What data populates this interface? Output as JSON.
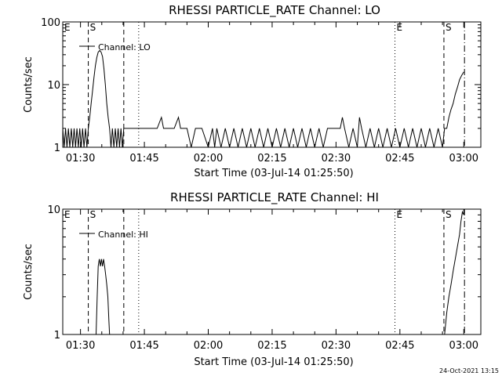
{
  "chart_data": [
    {
      "type": "line",
      "title": "RHESSI PARTICLE_RATE Channel: LO",
      "xlabel": "Start Time (03-Jul-14 01:25:50)",
      "ylabel": "Counts/sec",
      "yscale": "log",
      "ylim": [
        1,
        100
      ],
      "xlim": [
        "01:25:50",
        "03:04:00"
      ],
      "grid": false,
      "legend": {
        "placement": "top-left",
        "entries": [
          "Channel: LO"
        ]
      },
      "x_ticks": [
        "01:30",
        "01:45",
        "02:00",
        "02:15",
        "02:30",
        "02:45",
        "03:00"
      ],
      "y_ticks": [
        "1",
        "10",
        "100"
      ],
      "event_markers": [
        {
          "label": "E",
          "time": "01:25:50",
          "style": "edge"
        },
        {
          "label": "S",
          "time": "01:31:50",
          "style": "dashed"
        },
        {
          "label": "",
          "time": "01:40:10",
          "style": "dashed"
        },
        {
          "label": "",
          "time": "01:43:40",
          "style": "dotted"
        },
        {
          "label": "E",
          "time": "02:43:50",
          "style": "dotted"
        },
        {
          "label": "S",
          "time": "02:55:20",
          "style": "dashed"
        },
        {
          "label": "",
          "time": "03:00:10",
          "style": "dashdot"
        }
      ],
      "series": [
        {
          "name": "Channel: LO",
          "x": [
            "01:25:50",
            "01:26:10",
            "01:26:30",
            "01:26:50",
            "01:27:10",
            "01:27:30",
            "01:27:50",
            "01:28:10",
            "01:28:30",
            "01:28:50",
            "01:29:10",
            "01:29:30",
            "01:29:50",
            "01:30:10",
            "01:30:30",
            "01:30:50",
            "01:31:10",
            "01:31:30",
            "01:31:50",
            "01:32:10",
            "01:32:30",
            "01:32:50",
            "01:33:10",
            "01:33:30",
            "01:33:50",
            "01:34:10",
            "01:34:30",
            "01:34:50",
            "01:35:10",
            "01:35:30",
            "01:35:50",
            "01:36:10",
            "01:36:30",
            "01:36:50",
            "01:37:10",
            "01:37:30",
            "01:37:50",
            "01:38:10",
            "01:38:30",
            "01:38:50",
            "01:39:10",
            "01:39:30",
            "01:39:50",
            "01:40:10",
            "01:40:30",
            "01:40:50",
            "01:41:10",
            "01:41:30",
            "01:41:50",
            "01:42:10",
            "01:42:30",
            "01:42:50",
            "01:43:10",
            "01:43:30",
            "01:44:00",
            "01:46:00",
            "01:48:00",
            "01:49:00",
            "01:49:30",
            "01:50:00",
            "01:52:00",
            "01:53:00",
            "01:53:30",
            "01:54:00",
            "01:55:00",
            "01:56:00",
            "01:57:00",
            "01:58:30",
            "02:00:00",
            "02:01:00",
            "02:01:30",
            "02:02:00",
            "02:03:00",
            "02:04:00",
            "02:05:00",
            "02:06:00",
            "02:07:00",
            "02:08:00",
            "02:09:00",
            "02:10:00",
            "02:11:00",
            "02:12:00",
            "02:13:00",
            "02:14:00",
            "02:15:00",
            "02:16:00",
            "02:17:00",
            "02:18:00",
            "02:19:00",
            "02:20:00",
            "02:21:00",
            "02:22:00",
            "02:23:00",
            "02:24:00",
            "02:25:00",
            "02:26:00",
            "02:27:00",
            "02:28:00",
            "02:29:00",
            "02:30:00",
            "02:31:00",
            "02:31:30",
            "02:32:00",
            "02:33:00",
            "02:34:00",
            "02:35:00",
            "02:35:30",
            "02:36:00",
            "02:37:00",
            "02:38:00",
            "02:39:00",
            "02:40:00",
            "02:41:00",
            "02:42:00",
            "02:43:00",
            "02:44:00",
            "02:45:00",
            "02:46:00",
            "02:47:00",
            "02:48:00",
            "02:49:00",
            "02:50:00",
            "02:51:00",
            "02:52:00",
            "02:53:00",
            "02:54:00",
            "02:55:00",
            "02:55:30",
            "02:56:00",
            "02:56:30",
            "02:57:00",
            "02:57:30",
            "02:58:00",
            "02:58:30",
            "02:59:00",
            "02:59:30",
            "03:00:00"
          ],
          "y": [
            2,
            1,
            2,
            1,
            2,
            1,
            2,
            1,
            2,
            1,
            2,
            1,
            2,
            1,
            2,
            1,
            2,
            1,
            2,
            3,
            5,
            8,
            13,
            20,
            27,
            33,
            35,
            33,
            28,
            18,
            10,
            5,
            3,
            2,
            1,
            2,
            1,
            2,
            1,
            2,
            1,
            2,
            1,
            2,
            2,
            2,
            2,
            2,
            2,
            2,
            2,
            2,
            2,
            2,
            2,
            2,
            2,
            3,
            2,
            2,
            2,
            3,
            2,
            2,
            2,
            1,
            2,
            2,
            1,
            2,
            1,
            2,
            1,
            2,
            1,
            2,
            1,
            2,
            1,
            2,
            1,
            2,
            1,
            2,
            1,
            2,
            1,
            2,
            1,
            2,
            1,
            2,
            1,
            2,
            1,
            2,
            1,
            2,
            2,
            2,
            2,
            3,
            2,
            1,
            2,
            1,
            3,
            2,
            1,
            2,
            1,
            2,
            1,
            2,
            1,
            2,
            1,
            2,
            1,
            2,
            1,
            2,
            1,
            2,
            1,
            2,
            1,
            2,
            2,
            3,
            4,
            5,
            7,
            9,
            12,
            14,
            16
          ]
        }
      ]
    },
    {
      "type": "line",
      "title": "RHESSI PARTICLE_RATE Channel: HI",
      "xlabel": "Start Time (03-Jul-14 01:25:50)",
      "ylabel": "Counts/sec",
      "yscale": "log",
      "ylim": [
        1,
        10
      ],
      "xlim": [
        "01:25:50",
        "03:04:00"
      ],
      "grid": false,
      "legend": {
        "placement": "top-left",
        "entries": [
          "Channel: HI"
        ]
      },
      "x_ticks": [
        "01:30",
        "01:45",
        "02:00",
        "02:15",
        "02:30",
        "02:45",
        "03:00"
      ],
      "y_ticks": [
        "1",
        "10"
      ],
      "event_markers": [
        {
          "label": "E",
          "time": "01:25:50",
          "style": "edge"
        },
        {
          "label": "S",
          "time": "01:31:50",
          "style": "dashed"
        },
        {
          "label": "",
          "time": "01:40:10",
          "style": "dashed"
        },
        {
          "label": "",
          "time": "01:43:40",
          "style": "dotted"
        },
        {
          "label": "E",
          "time": "02:43:50",
          "style": "dotted"
        },
        {
          "label": "S",
          "time": "02:55:20",
          "style": "dashed"
        },
        {
          "label": "",
          "time": "03:00:10",
          "style": "dashdot"
        }
      ],
      "series": [
        {
          "name": "Channel: HI",
          "x": [
            "01:33:40",
            "01:33:55",
            "01:34:10",
            "01:34:25",
            "01:34:40",
            "01:34:55",
            "01:35:10",
            "01:35:25",
            "01:35:40",
            "01:35:55",
            "01:36:10",
            "01:36:25",
            "01:36:40",
            "01:36:50",
            "02:55:30",
            "02:56:00",
            "02:56:30",
            "02:57:00",
            "02:57:30",
            "02:58:00",
            "02:58:30",
            "02:59:00",
            "02:59:20",
            "02:59:40",
            "03:00:00"
          ],
          "y": [
            1,
            2,
            3.5,
            4,
            3.5,
            4,
            3.5,
            4,
            3.5,
            3,
            2.5,
            2,
            1.3,
            1,
            1,
            1.5,
            2,
            2.5,
            3.2,
            4,
            5,
            6.3,
            8,
            9.5,
            9
          ]
        }
      ]
    }
  ],
  "footer": {
    "date": "24-Oct-2021 13:15"
  }
}
